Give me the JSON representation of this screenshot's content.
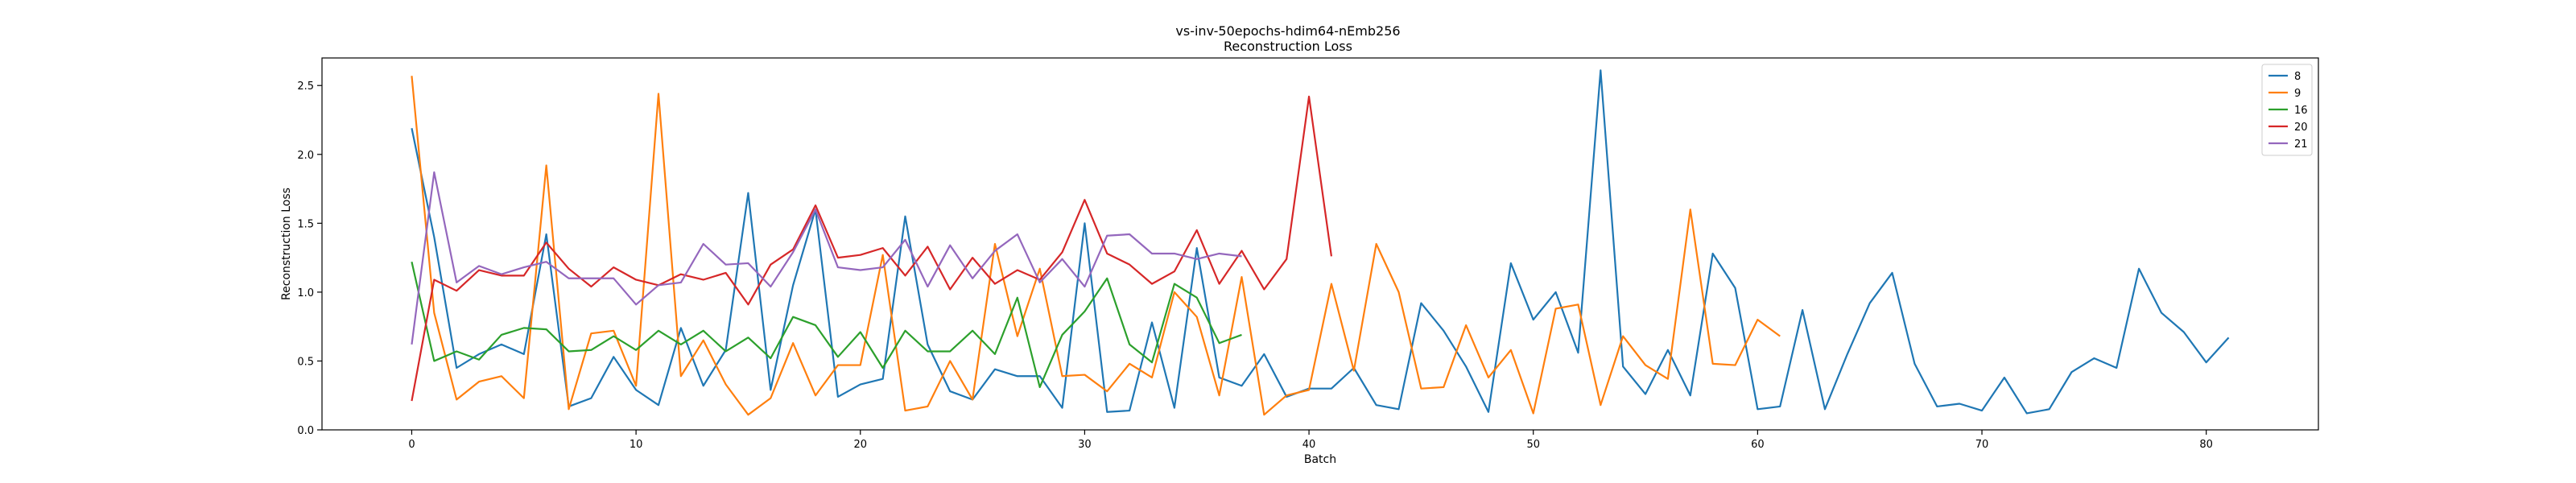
{
  "chart_data": {
    "type": "line",
    "title": "vs-inv-50epochs-hdim64-nEmb256",
    "subtitle": "Reconstruction Loss",
    "xlabel": "Batch",
    "ylabel": "Reconstruction Loss",
    "xlim": [
      -4,
      85
    ],
    "ylim": [
      0,
      2.7
    ],
    "xticks": [
      0,
      10,
      20,
      30,
      40,
      50,
      60,
      70,
      80
    ],
    "yticks": [
      0.0,
      0.5,
      1.0,
      1.5,
      2.0,
      2.5
    ],
    "ytick_labels": [
      "0.0",
      "0.5",
      "1.0",
      "1.5",
      "2.0",
      "2.5"
    ],
    "grid": false,
    "legend_position": "top-right",
    "series": [
      {
        "name": "8",
        "color": "#1f77b4",
        "values": [
          2.19,
          1.4,
          0.45,
          0.55,
          0.62,
          0.55,
          1.42,
          0.17,
          0.23,
          0.53,
          0.29,
          0.18,
          0.74,
          0.32,
          0.58,
          1.72,
          0.29,
          1.05,
          1.6,
          0.24,
          0.33,
          0.37,
          1.55,
          0.62,
          0.28,
          0.22,
          0.44,
          0.39,
          0.39,
          0.16,
          1.5,
          0.13,
          0.14,
          0.78,
          0.16,
          1.32,
          0.38,
          0.32,
          0.55,
          0.24,
          0.3,
          0.3,
          0.45,
          0.18,
          0.15,
          0.92,
          0.72,
          0.46,
          0.13,
          1.21,
          0.8,
          1.0,
          0.56,
          2.61,
          0.46,
          0.26,
          0.58,
          0.25,
          1.28,
          1.03,
          0.15,
          0.17,
          0.87,
          0.15,
          0.55,
          0.92,
          1.14,
          0.48,
          0.17,
          0.19,
          0.14,
          0.38,
          0.12,
          0.15,
          0.42,
          0.52,
          0.45,
          1.17,
          0.85,
          0.71,
          0.49,
          0.67
        ]
      },
      {
        "name": "9",
        "color": "#ff7f0e",
        "values": [
          2.57,
          0.85,
          0.22,
          0.35,
          0.39,
          0.23,
          1.92,
          0.15,
          0.7,
          0.72,
          0.32,
          2.44,
          0.39,
          0.65,
          0.33,
          0.11,
          0.23,
          0.63,
          0.25,
          0.47,
          0.47,
          1.27,
          0.14,
          0.17,
          0.5,
          0.22,
          1.35,
          0.68,
          1.17,
          0.39,
          0.4,
          0.28,
          0.48,
          0.38,
          1.0,
          0.82,
          0.25,
          1.11,
          0.11,
          0.25,
          0.29,
          1.06,
          0.43,
          1.35,
          1.0,
          0.3,
          0.31,
          0.76,
          0.38,
          0.58,
          0.12,
          0.88,
          0.91,
          0.18,
          0.68,
          0.47,
          0.37,
          1.6,
          0.48,
          0.47,
          0.8,
          0.68
        ]
      },
      {
        "name": "16",
        "color": "#2ca02c",
        "values": [
          1.22,
          0.5,
          0.57,
          0.51,
          0.69,
          0.74,
          0.73,
          0.57,
          0.58,
          0.68,
          0.58,
          0.72,
          0.62,
          0.72,
          0.57,
          0.67,
          0.52,
          0.82,
          0.76,
          0.53,
          0.71,
          0.45,
          0.72,
          0.57,
          0.57,
          0.72,
          0.55,
          0.96,
          0.31,
          0.69,
          0.86,
          1.1,
          0.62,
          0.49,
          1.06,
          0.96,
          0.63,
          0.69
        ]
      },
      {
        "name": "20",
        "color": "#d62728",
        "values": [
          0.21,
          1.09,
          1.01,
          1.16,
          1.12,
          1.12,
          1.36,
          1.17,
          1.04,
          1.18,
          1.09,
          1.05,
          1.13,
          1.09,
          1.14,
          0.91,
          1.2,
          1.31,
          1.63,
          1.25,
          1.27,
          1.32,
          1.12,
          1.33,
          1.02,
          1.25,
          1.06,
          1.16,
          1.09,
          1.29,
          1.67,
          1.28,
          1.2,
          1.06,
          1.15,
          1.45,
          1.06,
          1.3,
          1.02,
          1.24,
          2.42,
          1.26
        ]
      },
      {
        "name": "21",
        "color": "#9467bd",
        "values": [
          0.62,
          1.87,
          1.07,
          1.19,
          1.13,
          1.18,
          1.22,
          1.1,
          1.1,
          1.1,
          0.91,
          1.05,
          1.07,
          1.35,
          1.2,
          1.21,
          1.04,
          1.29,
          1.6,
          1.18,
          1.16,
          1.18,
          1.38,
          1.04,
          1.34,
          1.1,
          1.3,
          1.42,
          1.07,
          1.24,
          1.04,
          1.41,
          1.42,
          1.28,
          1.28,
          1.24,
          1.28,
          1.26
        ]
      }
    ]
  }
}
